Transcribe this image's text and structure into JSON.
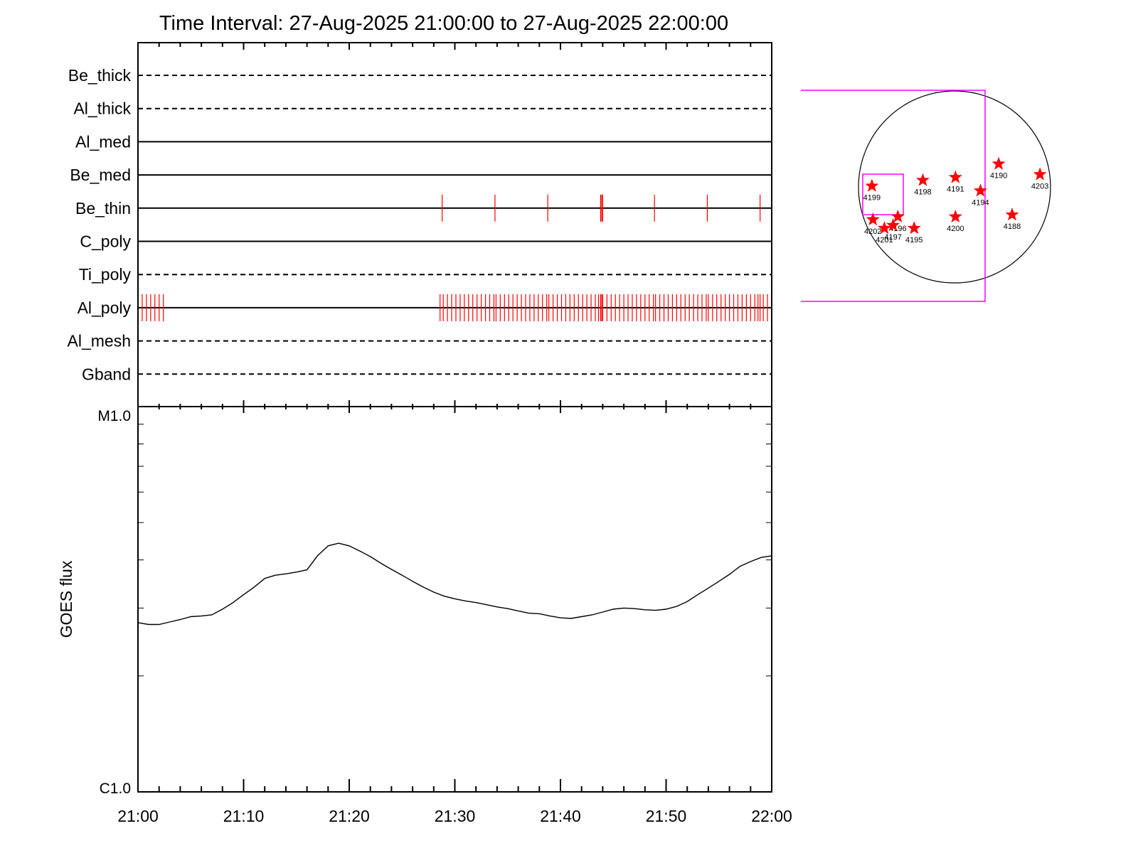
{
  "chart_data": [
    {
      "type": "timeline",
      "title": "Time Interval: 27-Aug-2025 21:00:00 to 27-Aug-2025 22:00:00",
      "x_range_minutes": [
        0,
        60
      ],
      "filters": [
        {
          "name": "Be_thick",
          "line": "dashed",
          "events_min": []
        },
        {
          "name": "Al_thick",
          "line": "dashed",
          "events_min": []
        },
        {
          "name": "Al_med",
          "line": "solid",
          "events_min": []
        },
        {
          "name": "Be_med",
          "line": "solid",
          "events_min": []
        },
        {
          "name": "Be_thin",
          "line": "solid",
          "events_min": [
            28.8,
            33.8,
            38.8,
            43.8,
            43.9,
            44.0,
            48.9,
            53.9,
            58.9
          ]
        },
        {
          "name": "C_poly",
          "line": "solid",
          "events_min": []
        },
        {
          "name": "Ti_poly",
          "line": "dashed",
          "events_min": []
        },
        {
          "name": "Al_poly",
          "line": "solid",
          "events_min": [
            0.4,
            0.8,
            1.2,
            1.6,
            2.0,
            2.4,
            28.6,
            28.9,
            29.3,
            29.7,
            30.1,
            30.5,
            30.9,
            31.3,
            31.7,
            32.1,
            32.5,
            32.9,
            33.3,
            33.7,
            33.9,
            34.3,
            34.7,
            35.1,
            35.5,
            35.9,
            36.3,
            36.7,
            37.1,
            37.5,
            37.9,
            38.3,
            38.7,
            38.9,
            39.3,
            39.7,
            40.1,
            40.5,
            40.9,
            41.3,
            41.7,
            42.1,
            42.5,
            42.9,
            43.3,
            43.6,
            43.8,
            43.9,
            44.0,
            44.4,
            44.8,
            45.2,
            45.6,
            46.0,
            46.4,
            46.8,
            47.2,
            47.6,
            48.0,
            48.4,
            48.8,
            49.0,
            49.4,
            49.8,
            50.2,
            50.6,
            51.0,
            51.4,
            51.8,
            52.2,
            52.6,
            53.0,
            53.4,
            53.8,
            54.0,
            54.4,
            54.8,
            55.2,
            55.6,
            56.0,
            56.4,
            56.8,
            57.2,
            57.6,
            58.0,
            58.4,
            58.7,
            58.9,
            59.2,
            59.6
          ]
        },
        {
          "name": "Al_mesh",
          "line": "dashed",
          "events_min": []
        },
        {
          "name": "Gband",
          "line": "dashed",
          "events_min": []
        }
      ],
      "event_color": "#ff0000"
    },
    {
      "type": "line",
      "ylabel": "GOES flux",
      "yscale": "log",
      "ylim": [
        1e-06,
        1e-05
      ],
      "y_tick_labels": [
        "C1.0",
        "M1.0"
      ],
      "x_tick_labels": [
        "21:00",
        "21:10",
        "21:20",
        "21:30",
        "21:40",
        "21:50",
        "22:00"
      ],
      "x_range_minutes": [
        0,
        60
      ],
      "series": [
        {
          "x": [
            0,
            1,
            2,
            3,
            4,
            5,
            6,
            7,
            8,
            9,
            10,
            11,
            12,
            13,
            14,
            15,
            16,
            17,
            18,
            19,
            20,
            21,
            22,
            23,
            24,
            25,
            26,
            27,
            28,
            29,
            30,
            31,
            32,
            33,
            34,
            35,
            36,
            37,
            38,
            39,
            40,
            41,
            42,
            43,
            44,
            45,
            46,
            47,
            48,
            49,
            50,
            51,
            52,
            53,
            54,
            55,
            56,
            57,
            58,
            59,
            60
          ],
          "y": [
            2.75e-06,
            2.72e-06,
            2.72e-06,
            2.76e-06,
            2.8e-06,
            2.85e-06,
            2.86e-06,
            2.88e-06,
            2.98e-06,
            3.1e-06,
            3.25e-06,
            3.4e-06,
            3.58e-06,
            3.65e-06,
            3.68e-06,
            3.72e-06,
            3.77e-06,
            4.1e-06,
            4.35e-06,
            4.42e-06,
            4.35e-06,
            4.22e-06,
            4.08e-06,
            3.92e-06,
            3.78e-06,
            3.65e-06,
            3.52e-06,
            3.4e-06,
            3.3e-06,
            3.22e-06,
            3.17e-06,
            3.13e-06,
            3.1e-06,
            3.06e-06,
            3.02e-06,
            2.99e-06,
            2.95e-06,
            2.91e-06,
            2.9e-06,
            2.86e-06,
            2.83e-06,
            2.82e-06,
            2.85e-06,
            2.88e-06,
            2.93e-06,
            2.98e-06,
            3e-06,
            2.99e-06,
            2.97e-06,
            2.96e-06,
            2.98e-06,
            3.03e-06,
            3.12e-06,
            3.25e-06,
            3.38e-06,
            3.52e-06,
            3.67e-06,
            3.85e-06,
            3.96e-06,
            4.06e-06,
            4.1e-06
          ]
        }
      ]
    },
    {
      "type": "scatter",
      "x_range_arcsec": [
        -1000,
        1000
      ],
      "y_range_arcsec": [
        -1000,
        1000
      ],
      "colors": {
        "markers": "#ff0000",
        "fov_box": "#ff00ff",
        "disk": "#000000"
      },
      "points": [
        {
          "label": "4190",
          "x": 460,
          "y": 240
        },
        {
          "label": "4191",
          "x": 10,
          "y": 100
        },
        {
          "label": "4194",
          "x": 270,
          "y": -40
        },
        {
          "label": "4203",
          "x": 890,
          "y": 130
        },
        {
          "label": "4188",
          "x": 600,
          "y": -290
        },
        {
          "label": "4198",
          "x": -330,
          "y": 70
        },
        {
          "label": "4199",
          "x": -860,
          "y": 10
        },
        {
          "label": "4200",
          "x": 10,
          "y": -310
        },
        {
          "label": "4202",
          "x": -850,
          "y": -340
        },
        {
          "label": "4201",
          "x": -730,
          "y": -430
        },
        {
          "label": "4196",
          "x": -590,
          "y": -310
        },
        {
          "label": "4197",
          "x": -640,
          "y": -400
        },
        {
          "label": "4195",
          "x": -420,
          "y": -430
        }
      ]
    }
  ]
}
